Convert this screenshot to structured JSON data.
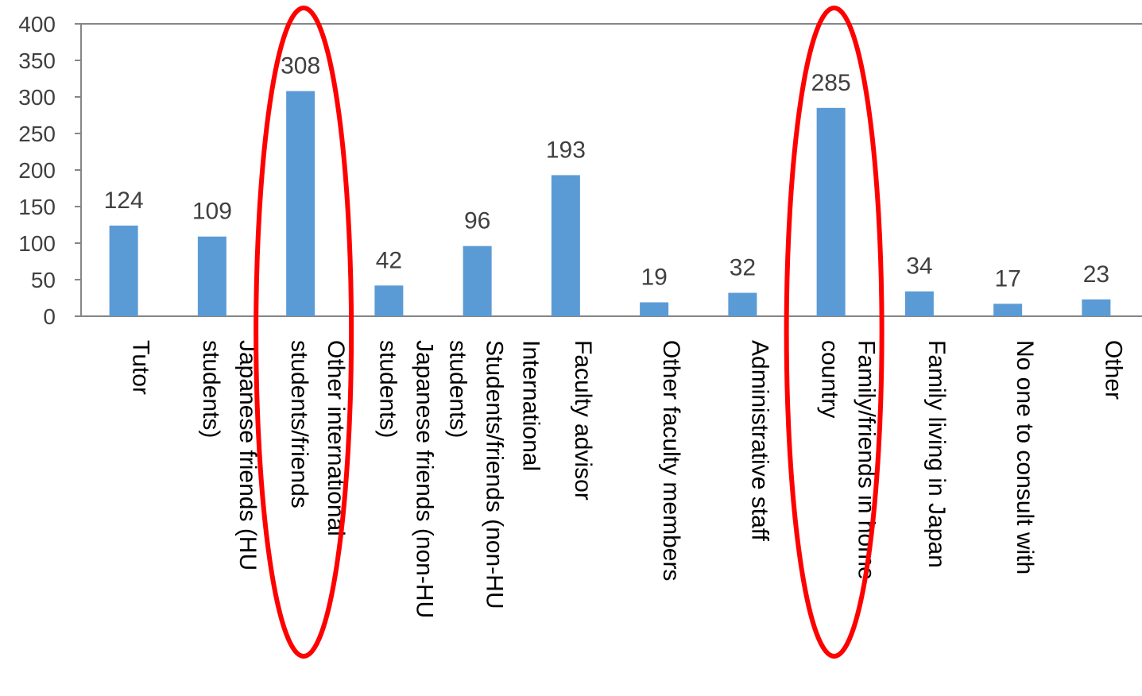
{
  "chart_data": {
    "type": "bar",
    "title": "",
    "xlabel": "",
    "ylabel": "",
    "ylim": [
      0,
      400
    ],
    "yticks": [
      0,
      50,
      100,
      150,
      200,
      250,
      300,
      350,
      400
    ],
    "grid": false,
    "legend": "none",
    "categories": [
      "Tutor",
      "Japanese friends (HU students)",
      "Other international students/friends",
      "Japanese friends (non-HU students)",
      "International Students/friends (non-HU students)",
      "Faculty advisor",
      "Other faculty members",
      "Administrative staff",
      "Family/friends in home country",
      "Family living in Japan",
      "No one to consult with",
      "Other"
    ],
    "category_lines": [
      [
        "Tutor"
      ],
      [
        "Japanese friends (HU",
        "students)"
      ],
      [
        "Other international",
        "students/friends"
      ],
      [
        "Japanese friends (non-HU",
        "students)"
      ],
      [
        "International",
        "Students/friends (non-HU",
        "students)"
      ],
      [
        "Faculty advisor"
      ],
      [
        "Other faculty members"
      ],
      [
        "Administrative staff"
      ],
      [
        "Family/friends in home",
        "country"
      ],
      [
        "Family living in Japan"
      ],
      [
        "No one to consult with"
      ],
      [
        "Other"
      ]
    ],
    "values": [
      124,
      109,
      308,
      42,
      96,
      193,
      19,
      32,
      285,
      34,
      17,
      23
    ],
    "highlighted": [
      2,
      8
    ],
    "colors": {
      "bar": "#5b9bd5",
      "highlight": "#ff0000",
      "axis": "#868686",
      "text": "#404040"
    }
  }
}
